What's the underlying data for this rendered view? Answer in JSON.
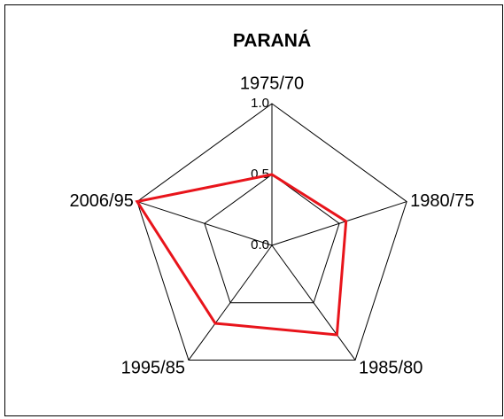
{
  "chart_data": {
    "type": "radar",
    "title": "PARANÁ",
    "categories": [
      "1975/70",
      "1980/75",
      "1985/80",
      "1995/85",
      "2006/95"
    ],
    "series": [
      {
        "color": "#e8141b",
        "values": [
          0.5,
          0.55,
          0.78,
          0.68,
          1.0
        ]
      }
    ],
    "ylim": [
      0,
      1
    ],
    "yticks": [
      {
        "value": 0,
        "label": "0.0"
      },
      0.5,
      {
        "value": 1,
        "label": "1.0"
      }
    ],
    "grid": true
  }
}
